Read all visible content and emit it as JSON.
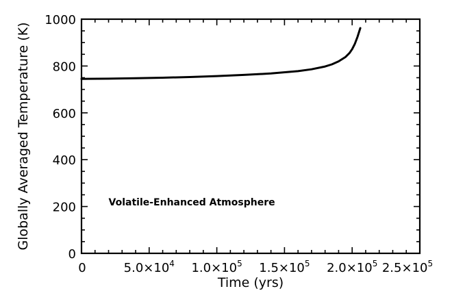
{
  "chart_data": {
    "type": "line",
    "title": "",
    "xlabel": "Time (yrs)",
    "ylabel": "Globally Averaged Temperature (K)",
    "xlim": [
      0,
      250000
    ],
    "ylim": [
      0,
      1000
    ],
    "x_ticks": [
      {
        "value": 0,
        "mantissa": "0",
        "exp": ""
      },
      {
        "value": 50000,
        "mantissa": "5.0×10",
        "exp": "4"
      },
      {
        "value": 100000,
        "mantissa": "1.0×10",
        "exp": "5"
      },
      {
        "value": 150000,
        "mantissa": "1.5×10",
        "exp": "5"
      },
      {
        "value": 200000,
        "mantissa": "2.0×10",
        "exp": "5"
      },
      {
        "value": 250000,
        "mantissa": "2.5×10",
        "exp": "5"
      }
    ],
    "y_ticks": [
      {
        "value": 0,
        "label": "0"
      },
      {
        "value": 200,
        "label": "200"
      },
      {
        "value": 400,
        "label": "400"
      },
      {
        "value": 600,
        "label": "600"
      },
      {
        "value": 800,
        "label": "800"
      },
      {
        "value": 1000,
        "label": "1000"
      }
    ],
    "grid": false,
    "annotation": "Volatile-Enhanced Atmosphere",
    "series": [
      {
        "x": [
          0,
          20000,
          40000,
          60000,
          80000,
          100000,
          120000,
          140000,
          160000,
          170000,
          180000,
          185000,
          190000,
          195000,
          198000,
          200000,
          202000,
          204000,
          206000
        ],
        "y": [
          745,
          746,
          748,
          750,
          753,
          757,
          762,
          768,
          778,
          786,
          798,
          807,
          820,
          838,
          855,
          872,
          895,
          925,
          962
        ]
      }
    ]
  }
}
